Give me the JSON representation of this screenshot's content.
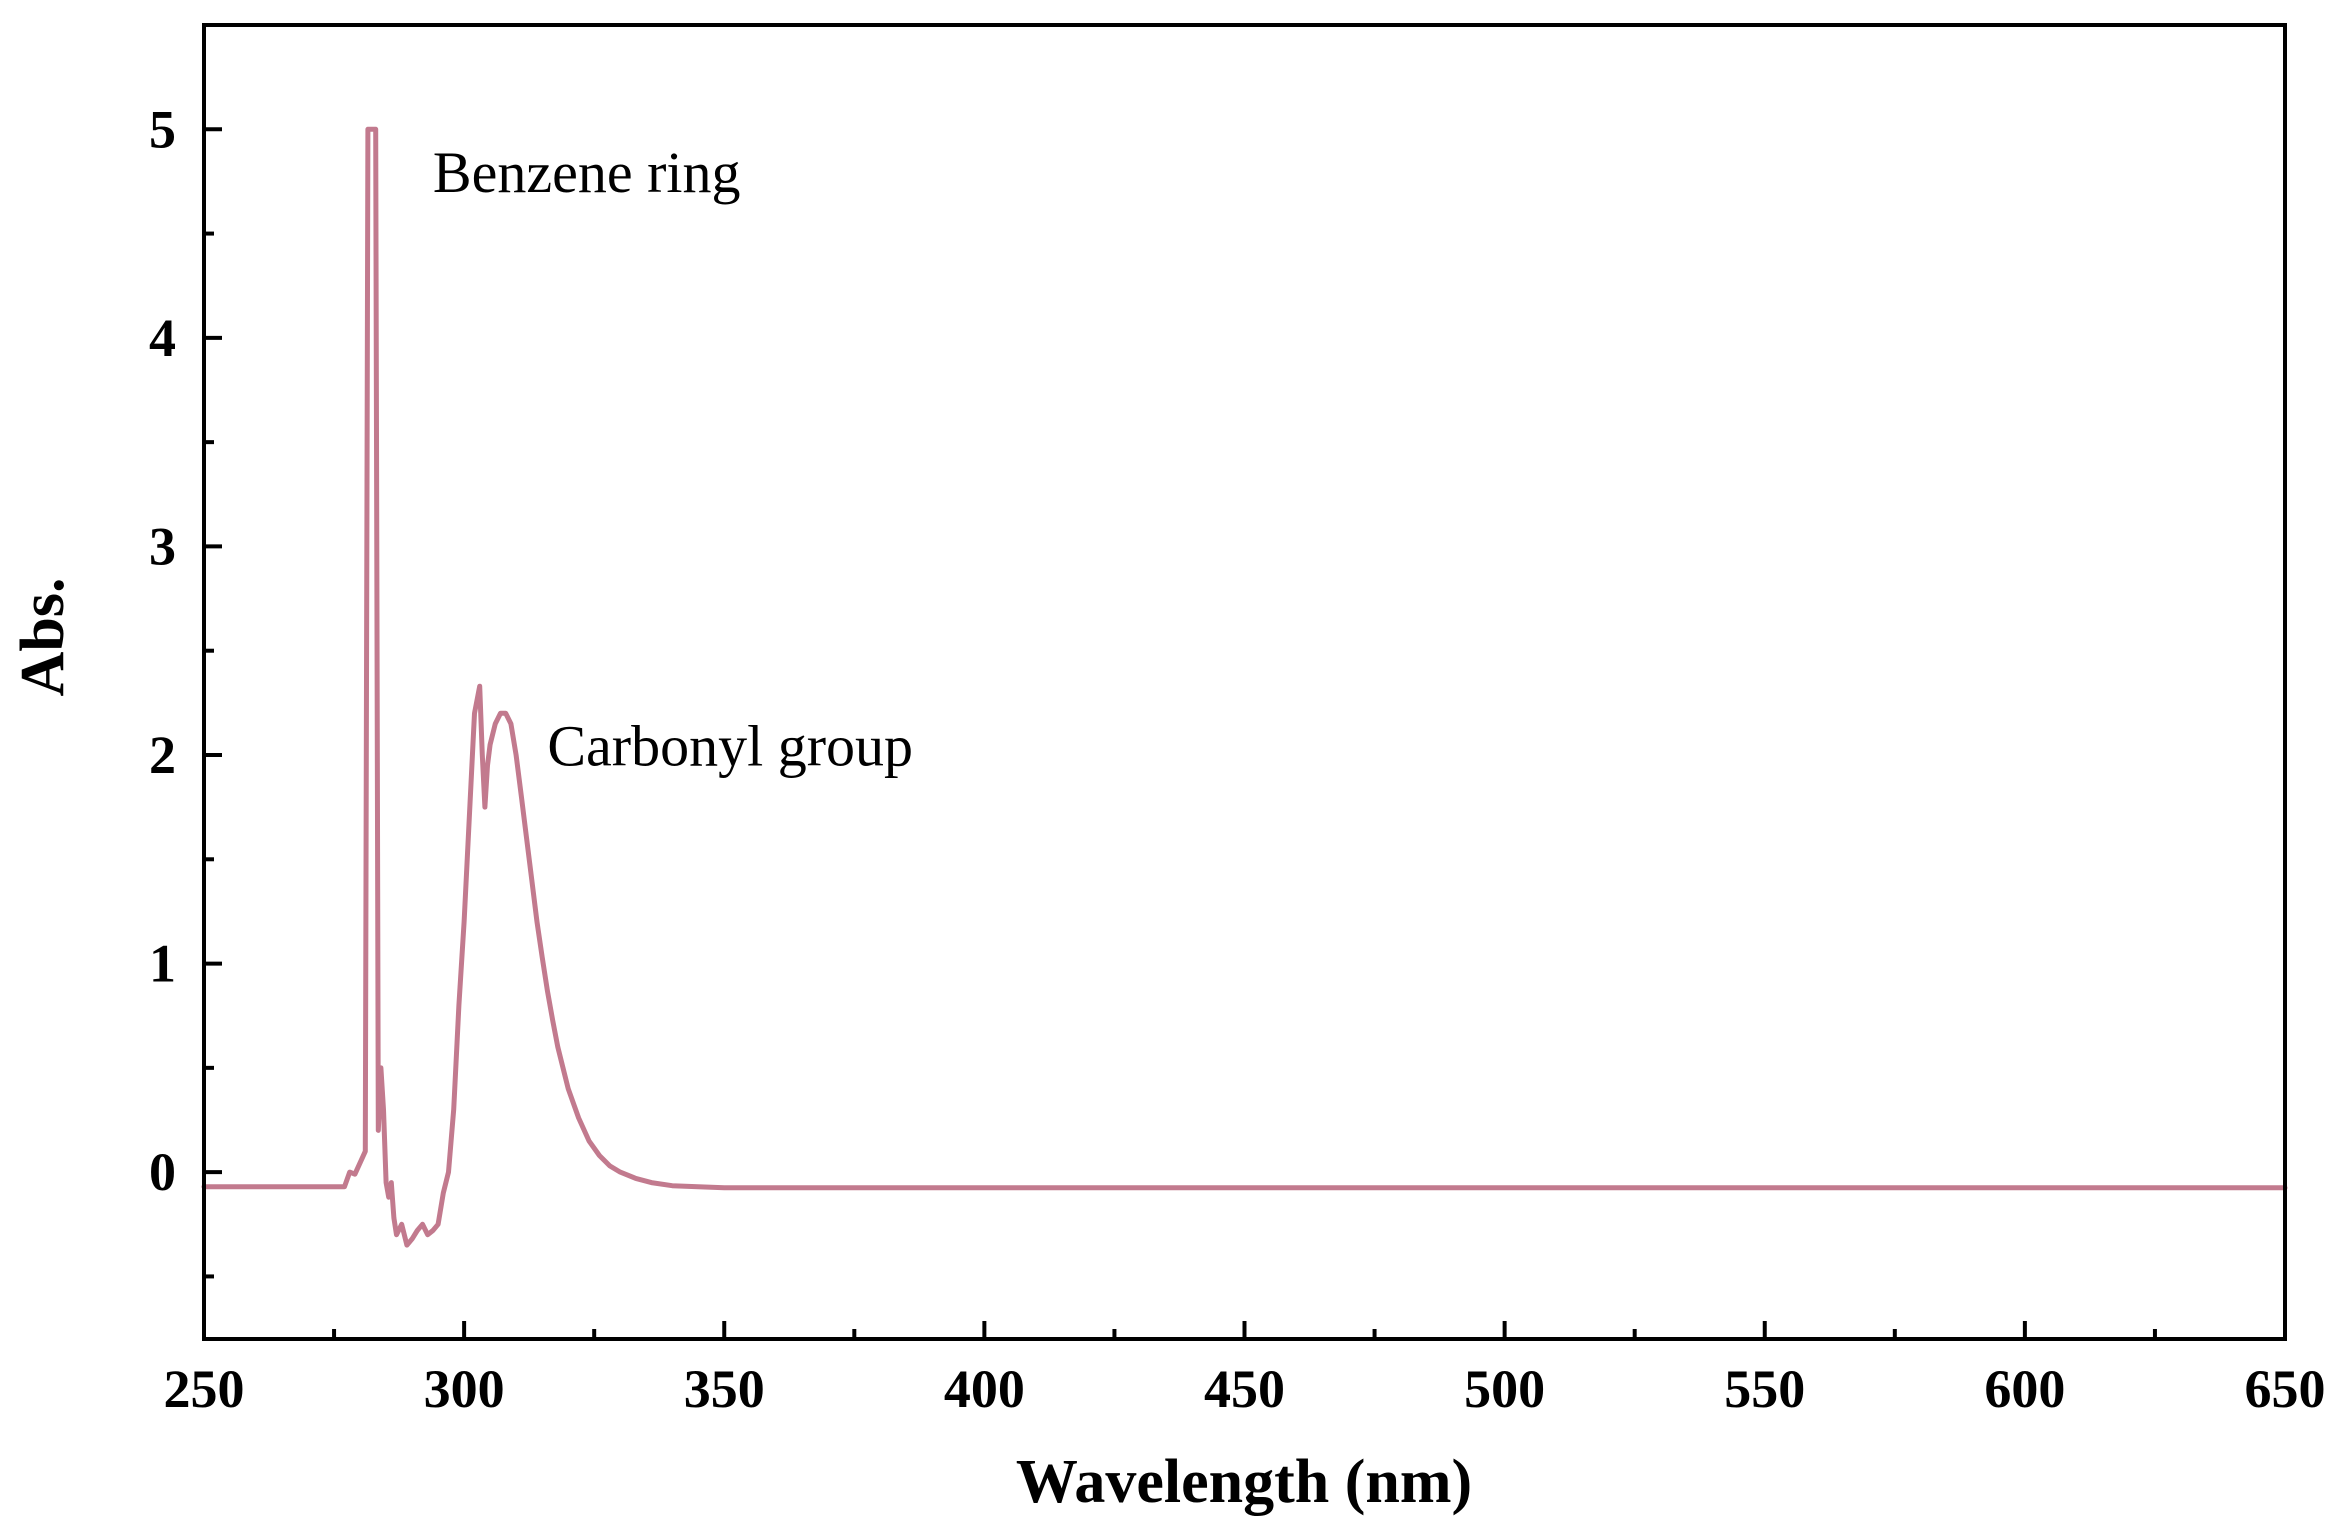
{
  "chart_data": {
    "type": "line",
    "title": "",
    "xlabel": "Wavelength (nm)",
    "ylabel": "Abs.",
    "xlim": [
      250,
      650
    ],
    "ylim": [
      -0.8,
      5.5
    ],
    "x_ticks": [
      250,
      300,
      350,
      400,
      450,
      500,
      550,
      600,
      650
    ],
    "x_tick_labels": [
      "250",
      "300",
      "350",
      "400",
      "450",
      "500",
      "550",
      "600",
      "650"
    ],
    "y_ticks": [
      0,
      1,
      2,
      3,
      4,
      5
    ],
    "y_tick_labels": [
      "0",
      "1",
      "2",
      "3",
      "4",
      "5"
    ],
    "grid": false,
    "legend": "none",
    "colors": {
      "line": "#c27a8e",
      "axis": "#000000"
    },
    "annotations": [
      {
        "text": "Benzene ring",
        "x": 294,
        "y": 4.7
      },
      {
        "text": "Carbonyl group",
        "x": 316,
        "y": 1.95
      }
    ],
    "series": [
      {
        "x": [
          250,
          277,
          278,
          279,
          281,
          281.5,
          282,
          282.5,
          283,
          283.5,
          284,
          284.5,
          285,
          285.5,
          286,
          286.5,
          287,
          288,
          289,
          290,
          291,
          292,
          293,
          294,
          295,
          296,
          297,
          298,
          299,
          300,
          301,
          302,
          303,
          303.5,
          304,
          304.5,
          305,
          306,
          307,
          308,
          309,
          310,
          311,
          312,
          313,
          314,
          315,
          316,
          317,
          318,
          319,
          320,
          322,
          324,
          326,
          328,
          330,
          333,
          336,
          340,
          345,
          350,
          360,
          400,
          450,
          500,
          550,
          600,
          650
        ],
        "y": [
          -0.07,
          -0.07,
          0.0,
          -0.01,
          0.1,
          5.0,
          5.0,
          5.0,
          5.0,
          0.2,
          0.5,
          0.3,
          -0.05,
          -0.12,
          -0.05,
          -0.22,
          -0.3,
          -0.25,
          -0.35,
          -0.32,
          -0.28,
          -0.25,
          -0.3,
          -0.28,
          -0.25,
          -0.1,
          0.0,
          0.3,
          0.8,
          1.2,
          1.7,
          2.2,
          2.33,
          2.0,
          1.75,
          1.95,
          2.05,
          2.15,
          2.2,
          2.2,
          2.15,
          2.0,
          1.8,
          1.6,
          1.4,
          1.2,
          1.03,
          0.87,
          0.73,
          0.6,
          0.5,
          0.4,
          0.26,
          0.15,
          0.08,
          0.03,
          0.0,
          -0.03,
          -0.05,
          -0.065,
          -0.07,
          -0.075,
          -0.075,
          -0.075,
          -0.075,
          -0.075,
          -0.075,
          -0.075,
          -0.075
        ]
      }
    ]
  }
}
